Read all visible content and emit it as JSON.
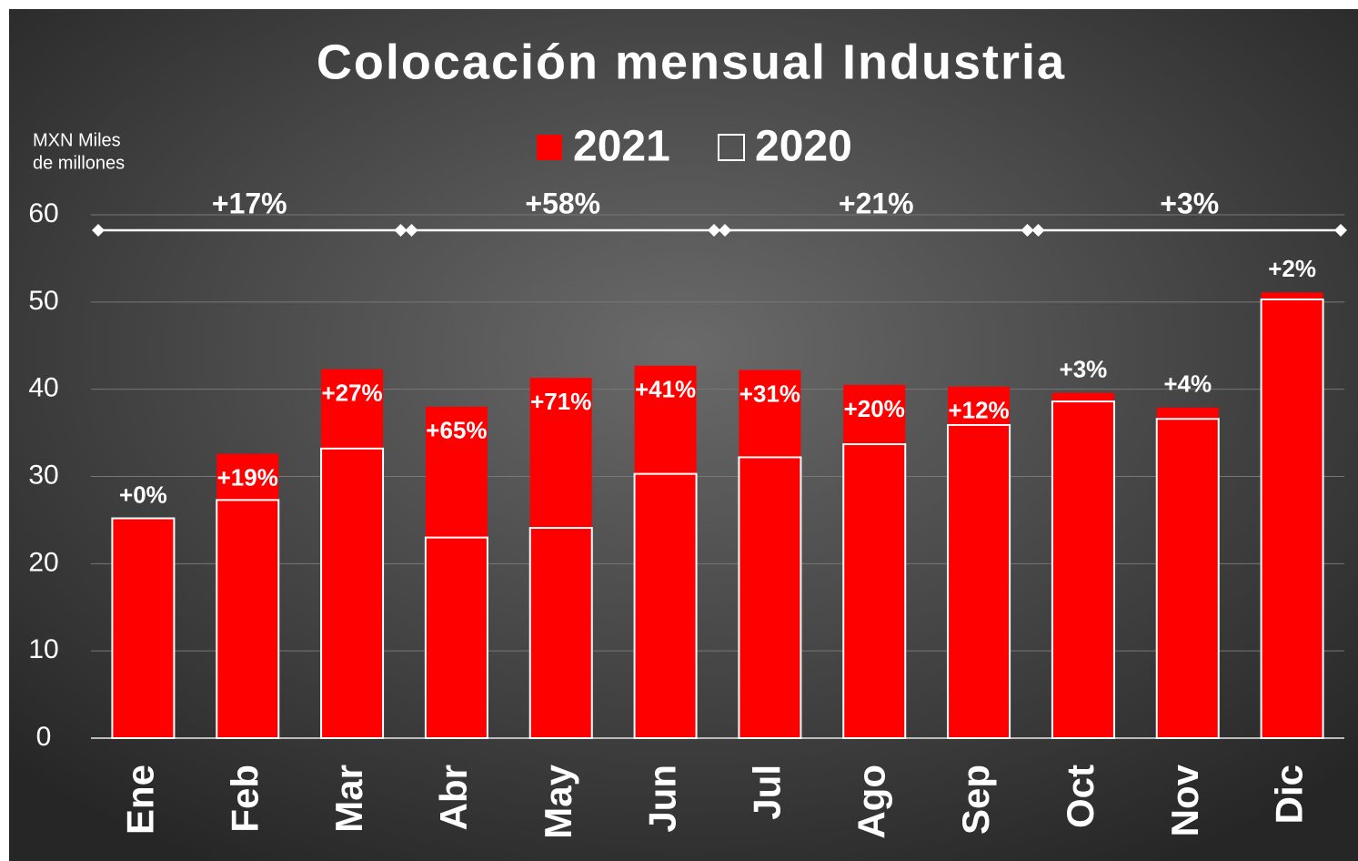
{
  "chart_data": {
    "type": "bar",
    "title": "Colocación mensual Industria",
    "ylabel": [
      "MXN Miles",
      "de millones"
    ],
    "categories": [
      "Ene",
      "Feb",
      "Mar",
      "Abr",
      "May",
      "Jun",
      "Jul",
      "Ago",
      "Sep",
      "Oct",
      "Nov",
      "Dic"
    ],
    "series": [
      {
        "name": "2021",
        "color": "#ff0000",
        "values": [
          25.2,
          32.6,
          42.3,
          38.0,
          41.3,
          42.7,
          42.2,
          40.5,
          40.3,
          39.6,
          37.9,
          51.1
        ]
      },
      {
        "name": "2020",
        "color": "#ff0000",
        "edgecolor": "#ffffff",
        "values": [
          25.2,
          27.3,
          33.2,
          23.0,
          24.1,
          30.3,
          32.2,
          33.7,
          35.9,
          38.6,
          36.6,
          50.3
        ]
      }
    ],
    "growth_labels": [
      "+0%",
      "+19%",
      "+27%",
      "+65%",
      "+71%",
      "+41%",
      "+31%",
      "+20%",
      "+12%",
      "+3%",
      "+4%",
      "+2%"
    ],
    "quarter_labels": [
      "+17%",
      "+58%",
      "+21%",
      "+3%"
    ],
    "ylim": [
      0,
      60
    ],
    "yticks": [
      0,
      10,
      20,
      30,
      40,
      50,
      60
    ],
    "grid": true
  }
}
